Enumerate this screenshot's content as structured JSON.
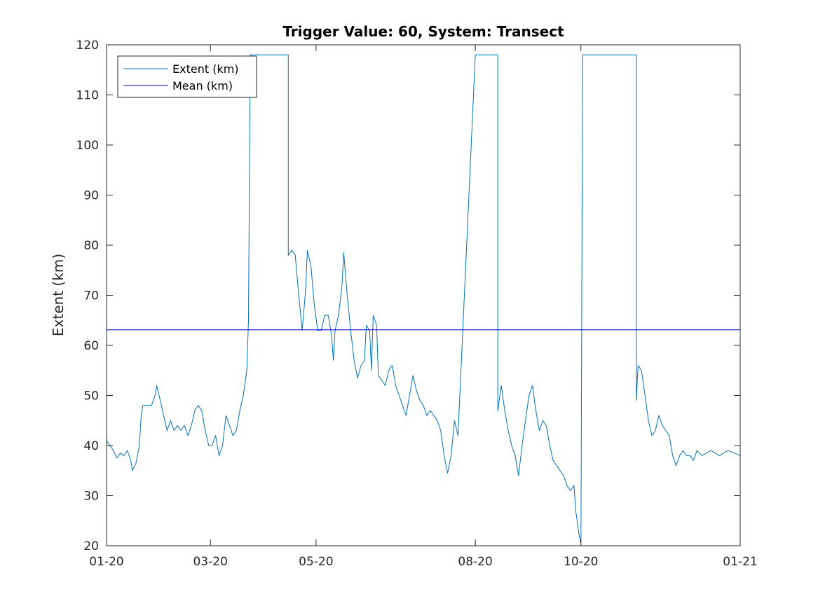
{
  "chart_data": {
    "type": "line",
    "title": "Trigger Value: 60, System: Transect",
    "xlabel": "",
    "ylabel": "Extent (km)",
    "ylim": [
      20,
      120
    ],
    "yticks": [
      20,
      30,
      40,
      50,
      60,
      70,
      80,
      90,
      100,
      110,
      120
    ],
    "xlim": [
      "2020-01-01",
      "2021-01-01"
    ],
    "xticks": [
      {
        "date": "2020-01-01",
        "label": "01-20"
      },
      {
        "date": "2020-03-01",
        "label": "03-20"
      },
      {
        "date": "2020-05-01",
        "label": "05-20"
      },
      {
        "date": "2020-08-01",
        "label": "08-20"
      },
      {
        "date": "2020-10-01",
        "label": "10-20"
      },
      {
        "date": "2021-01-01",
        "label": "01-21"
      }
    ],
    "grid": false,
    "legend_position": "top-left",
    "series": [
      {
        "name": "Extent (km)",
        "color": "#0072BD",
        "points": [
          [
            "2020-01-01",
            41
          ],
          [
            "2020-01-03",
            40
          ],
          [
            "2020-01-05",
            39
          ],
          [
            "2020-01-07",
            37.5
          ],
          [
            "2020-01-09",
            38.5
          ],
          [
            "2020-01-11",
            38
          ],
          [
            "2020-01-13",
            39
          ],
          [
            "2020-01-15",
            37
          ],
          [
            "2020-01-16",
            35
          ],
          [
            "2020-01-18",
            36.5
          ],
          [
            "2020-01-20",
            40
          ],
          [
            "2020-01-21",
            46
          ],
          [
            "2020-01-22",
            48
          ],
          [
            "2020-01-25",
            48
          ],
          [
            "2020-01-27",
            48
          ],
          [
            "2020-01-29",
            50
          ],
          [
            "2020-01-30",
            52
          ],
          [
            "2020-02-01",
            49
          ],
          [
            "2020-02-03",
            46
          ],
          [
            "2020-02-05",
            43
          ],
          [
            "2020-02-07",
            45
          ],
          [
            "2020-02-09",
            43
          ],
          [
            "2020-02-11",
            44
          ],
          [
            "2020-02-13",
            43
          ],
          [
            "2020-02-15",
            44
          ],
          [
            "2020-02-17",
            42
          ],
          [
            "2020-02-19",
            44
          ],
          [
            "2020-02-21",
            47
          ],
          [
            "2020-02-23",
            48
          ],
          [
            "2020-02-25",
            47
          ],
          [
            "2020-02-27",
            43
          ],
          [
            "2020-02-29",
            40
          ],
          [
            "2020-03-02",
            40
          ],
          [
            "2020-03-04",
            42
          ],
          [
            "2020-03-06",
            38
          ],
          [
            "2020-03-08",
            40
          ],
          [
            "2020-03-10",
            46
          ],
          [
            "2020-03-12",
            44
          ],
          [
            "2020-03-14",
            42
          ],
          [
            "2020-03-16",
            43
          ],
          [
            "2020-03-18",
            47
          ],
          [
            "2020-03-20",
            50
          ],
          [
            "2020-03-22",
            55
          ],
          [
            "2020-03-23",
            65
          ],
          [
            "2020-03-24",
            118
          ],
          [
            "2020-04-15",
            118
          ],
          [
            "2020-04-15",
            78
          ],
          [
            "2020-04-17",
            79
          ],
          [
            "2020-04-19",
            78
          ],
          [
            "2020-04-21",
            70
          ],
          [
            "2020-04-23",
            63
          ],
          [
            "2020-04-25",
            71
          ],
          [
            "2020-04-26",
            79
          ],
          [
            "2020-04-28",
            76
          ],
          [
            "2020-04-30",
            68
          ],
          [
            "2020-05-02",
            63
          ],
          [
            "2020-05-04",
            63
          ],
          [
            "2020-05-06",
            66
          ],
          [
            "2020-05-08",
            66
          ],
          [
            "2020-05-10",
            62
          ],
          [
            "2020-05-11",
            57
          ],
          [
            "2020-05-12",
            63
          ],
          [
            "2020-05-14",
            66
          ],
          [
            "2020-05-16",
            72
          ],
          [
            "2020-05-17",
            78.5
          ],
          [
            "2020-05-19",
            70
          ],
          [
            "2020-05-21",
            63
          ],
          [
            "2020-05-23",
            57
          ],
          [
            "2020-05-25",
            53.5
          ],
          [
            "2020-05-27",
            56
          ],
          [
            "2020-05-29",
            57
          ],
          [
            "2020-05-30",
            64
          ],
          [
            "2020-06-01",
            63
          ],
          [
            "2020-06-02",
            55
          ],
          [
            "2020-06-03",
            66
          ],
          [
            "2020-06-05",
            64
          ],
          [
            "2020-06-06",
            54
          ],
          [
            "2020-06-08",
            53
          ],
          [
            "2020-06-10",
            52
          ],
          [
            "2020-06-12",
            55
          ],
          [
            "2020-06-14",
            56
          ],
          [
            "2020-06-16",
            52
          ],
          [
            "2020-06-18",
            50
          ],
          [
            "2020-06-20",
            48
          ],
          [
            "2020-06-22",
            46
          ],
          [
            "2020-06-24",
            50
          ],
          [
            "2020-06-26",
            54
          ],
          [
            "2020-06-28",
            51
          ],
          [
            "2020-06-30",
            49
          ],
          [
            "2020-07-02",
            48
          ],
          [
            "2020-07-04",
            46
          ],
          [
            "2020-07-06",
            47
          ],
          [
            "2020-07-08",
            46
          ],
          [
            "2020-07-10",
            45
          ],
          [
            "2020-07-12",
            43
          ],
          [
            "2020-07-14",
            38
          ],
          [
            "2020-07-16",
            34.5
          ],
          [
            "2020-07-18",
            38
          ],
          [
            "2020-07-20",
            45
          ],
          [
            "2020-07-22",
            42
          ],
          [
            "2020-08-01",
            118
          ],
          [
            "2020-08-14",
            118
          ],
          [
            "2020-08-14",
            47
          ],
          [
            "2020-08-16",
            52
          ],
          [
            "2020-08-18",
            47
          ],
          [
            "2020-08-20",
            43
          ],
          [
            "2020-08-22",
            40
          ],
          [
            "2020-08-24",
            38
          ],
          [
            "2020-08-26",
            34
          ],
          [
            "2020-08-28",
            40
          ],
          [
            "2020-08-30",
            45
          ],
          [
            "2020-09-01",
            50
          ],
          [
            "2020-09-03",
            52
          ],
          [
            "2020-09-05",
            47
          ],
          [
            "2020-09-07",
            43
          ],
          [
            "2020-09-09",
            45
          ],
          [
            "2020-09-11",
            44
          ],
          [
            "2020-09-13",
            40
          ],
          [
            "2020-09-15",
            37
          ],
          [
            "2020-09-17",
            36
          ],
          [
            "2020-09-19",
            35
          ],
          [
            "2020-09-21",
            34
          ],
          [
            "2020-09-23",
            32
          ],
          [
            "2020-09-25",
            31
          ],
          [
            "2020-09-27",
            32
          ],
          [
            "2020-09-28",
            27
          ],
          [
            "2020-09-30",
            22
          ],
          [
            "2020-10-01",
            20.5
          ],
          [
            "2020-10-02",
            118
          ],
          [
            "2020-11-02",
            118
          ],
          [
            "2020-11-02",
            49
          ],
          [
            "2020-11-03",
            56
          ],
          [
            "2020-11-05",
            55
          ],
          [
            "2020-11-07",
            50
          ],
          [
            "2020-11-09",
            45
          ],
          [
            "2020-11-11",
            42
          ],
          [
            "2020-11-13",
            43
          ],
          [
            "2020-11-15",
            46
          ],
          [
            "2020-11-17",
            44
          ],
          [
            "2020-11-19",
            43
          ],
          [
            "2020-11-21",
            42
          ],
          [
            "2020-11-23",
            38
          ],
          [
            "2020-11-25",
            36
          ],
          [
            "2020-11-27",
            38
          ],
          [
            "2020-11-29",
            39
          ],
          [
            "2020-12-01",
            38
          ],
          [
            "2020-12-03",
            38
          ],
          [
            "2020-12-05",
            37
          ],
          [
            "2020-12-07",
            39
          ],
          [
            "2020-12-10",
            38
          ],
          [
            "2020-12-15",
            39
          ],
          [
            "2020-12-20",
            38
          ],
          [
            "2020-12-25",
            39
          ],
          [
            "2021-01-01",
            38
          ]
        ]
      },
      {
        "name": "Mean (km)",
        "color": "#0000FF",
        "points": [
          [
            "2020-01-01",
            63.1
          ],
          [
            "2021-01-01",
            63.1
          ]
        ]
      }
    ]
  }
}
